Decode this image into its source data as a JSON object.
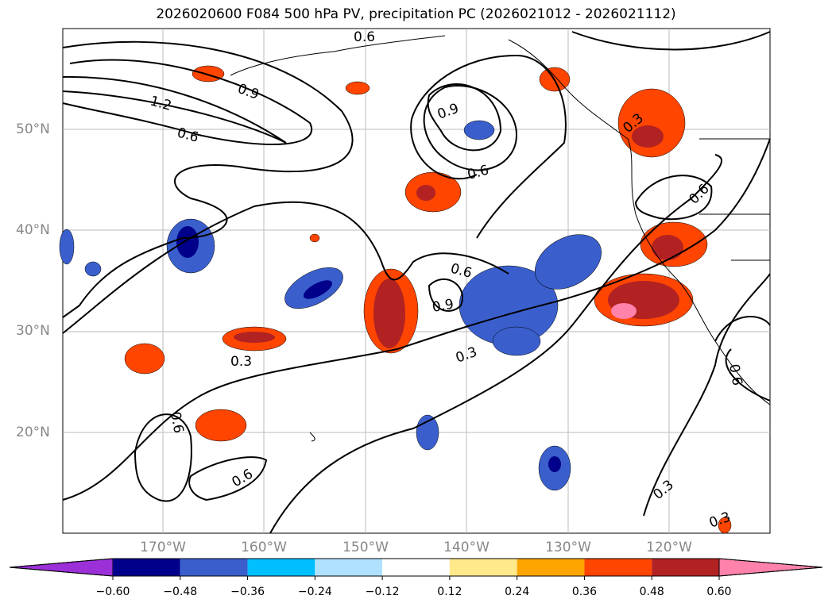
{
  "title": "2026020600 F084 500 hPa PV, precipitation PC (2026021012 - 2026021112)",
  "map": {
    "lat_labels": [
      "20°N",
      "30°N",
      "40°N",
      "50°N"
    ],
    "lon_labels": [
      "170°W",
      "160°W",
      "150°W",
      "140°W",
      "130°W",
      "120°W"
    ],
    "contour_labels": [
      "0.6",
      "0.9",
      "1.2",
      "0.6",
      "0.9",
      "0.6",
      "0.6",
      "0.6",
      "0.9",
      "0.3",
      "0.3",
      "0.6",
      "0.6",
      "0.3",
      "0.3",
      "0.3",
      "0.6"
    ]
  },
  "colorbar": {
    "ticks": [
      "−0.60",
      "−0.48",
      "−0.36",
      "−0.24",
      "−0.12",
      "0.12",
      "0.24",
      "0.36",
      "0.48",
      "0.60"
    ],
    "colors": [
      "#9b30d9",
      "#00008b",
      "#3a5fcd",
      "#00bfff",
      "#b0e2ff",
      "#ffffff",
      "#ffe98a",
      "#ffa500",
      "#ff4500",
      "#b22222",
      "#ff82ab"
    ]
  }
}
